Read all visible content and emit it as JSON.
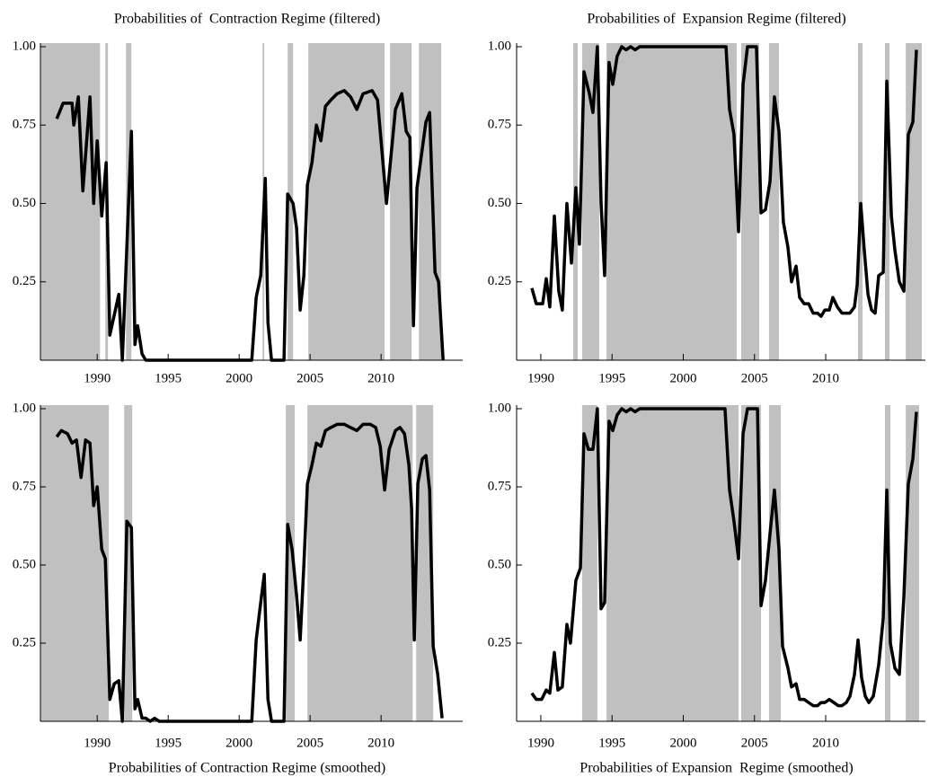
{
  "chart_data": [
    {
      "type": "line",
      "title": "Probabilities of  Contraction Regime (filtered)",
      "color": "#000000",
      "shade_color": "#c0c0c0",
      "xlim": [
        1986.0,
        2015.75
      ],
      "ylim": [
        0,
        1
      ],
      "xticks": [
        1990,
        1995,
        2000,
        2005,
        2010
      ],
      "yticks": [
        0.25,
        {
          "value": 0.5,
          "label": "0.50"
        },
        0.75,
        {
          "value": 1,
          "label": "1.00"
        }
      ],
      "shaded": [
        [
          1986.0,
          1990.2
        ],
        [
          1990.57,
          1990.76
        ],
        [
          1992.03,
          1992.41
        ],
        [
          2001.65,
          2001.77
        ],
        [
          2003.42,
          2003.8
        ],
        [
          2004.87,
          2010.25
        ],
        [
          2010.63,
          2012.15
        ],
        [
          2012.66,
          2014.24
        ]
      ],
      "x": [
        1987.15,
        1987.6,
        1988.23,
        1988.35,
        1988.67,
        1988.99,
        1989.49,
        1989.75,
        1990.0,
        1990.32,
        1990.63,
        1990.89,
        1991.52,
        1991.77,
        1992.41,
        1992.66,
        1992.85,
        1993.16,
        1993.42,
        2000.89,
        2001.2,
        2001.52,
        2001.84,
        2002.03,
        2002.28,
        2003.16,
        2003.42,
        2003.8,
        2004.05,
        2004.3,
        2004.56,
        2004.81,
        2005.13,
        2005.44,
        2005.76,
        2006.08,
        2006.46,
        2006.9,
        2007.41,
        2007.85,
        2008.29,
        2008.73,
        2009.37,
        2009.75,
        2010.38,
        2011.01,
        2011.46,
        2011.77,
        2012.03,
        2012.28,
        2012.53,
        2013.16,
        2013.42,
        2013.8,
        2014.05,
        2014.37
      ],
      "values": [
        0.77,
        0.82,
        0.82,
        0.75,
        0.84,
        0.54,
        0.84,
        0.5,
        0.7,
        0.46,
        0.63,
        0.08,
        0.21,
        0,
        0.73,
        0.05,
        0.11,
        0.02,
        0,
        0,
        0.2,
        0.27,
        0.58,
        0.12,
        0,
        0,
        0.53,
        0.5,
        0.42,
        0.16,
        0.27,
        0.56,
        0.63,
        0.75,
        0.7,
        0.81,
        0.83,
        0.85,
        0.86,
        0.84,
        0.8,
        0.85,
        0.86,
        0.83,
        0.5,
        0.8,
        0.85,
        0.73,
        0.71,
        0.11,
        0.55,
        0.76,
        0.79,
        0.28,
        0.25,
        0
      ]
    },
    {
      "type": "line",
      "title": "Probabilities of  Expansion Regime (filtered)",
      "color": "#000000",
      "shade_color": "#c0c0c0",
      "xlim": [
        1988.3,
        2017.0
      ],
      "ylim": [
        0,
        1
      ],
      "xticks": [
        1990,
        1995,
        2000,
        2005,
        2010
      ],
      "yticks": [
        0.25,
        {
          "value": 0.5,
          "label": "0.50"
        },
        0.75,
        {
          "value": 1,
          "label": "1.00"
        }
      ],
      "shaded": [
        [
          1992.27,
          1992.59
        ],
        [
          1992.9,
          1994.1
        ],
        [
          1994.61,
          2003.75
        ],
        [
          2004.07,
          2005.33
        ],
        [
          2006.02,
          2006.72
        ],
        [
          2012.27,
          2012.59
        ],
        [
          2014.16,
          2014.48
        ],
        [
          2015.62,
          2016.75
        ]
      ],
      "x": [
        1989.37,
        1989.68,
        1990.13,
        1990.38,
        1990.63,
        1990.95,
        1991.26,
        1991.51,
        1991.83,
        1992.15,
        1992.46,
        1992.71,
        1993.03,
        1993.41,
        1993.66,
        1993.97,
        1994.23,
        1994.48,
        1994.79,
        1995.05,
        1995.36,
        1995.68,
        1995.99,
        1996.31,
        1996.62,
        1996.94,
        2003.0,
        2003.25,
        2003.56,
        2003.88,
        2004.2,
        2004.51,
        2005.14,
        2005.46,
        2005.77,
        2006.09,
        2006.4,
        2006.72,
        2007.03,
        2007.35,
        2007.6,
        2007.92,
        2008.17,
        2008.49,
        2008.8,
        2009.12,
        2009.43,
        2009.68,
        2009.94,
        2010.25,
        2010.5,
        2010.82,
        2011.14,
        2011.45,
        2011.7,
        2012.02,
        2012.21,
        2012.46,
        2012.71,
        2012.97,
        2013.22,
        2013.47,
        2013.72,
        2014.04,
        2014.29,
        2014.61,
        2014.86,
        2015.17,
        2015.49,
        2015.8,
        2016.12,
        2016.37
      ],
      "values": [
        0.23,
        0.18,
        0.18,
        0.26,
        0.17,
        0.46,
        0.22,
        0.16,
        0.5,
        0.31,
        0.55,
        0.37,
        0.92,
        0.85,
        0.79,
        1,
        0.5,
        0.27,
        0.95,
        0.88,
        0.97,
        1,
        0.99,
        1,
        0.99,
        1,
        1,
        0.8,
        0.72,
        0.41,
        0.88,
        1,
        1,
        0.47,
        0.48,
        0.57,
        0.84,
        0.73,
        0.44,
        0.36,
        0.25,
        0.3,
        0.2,
        0.18,
        0.18,
        0.15,
        0.15,
        0.14,
        0.16,
        0.16,
        0.2,
        0.17,
        0.15,
        0.15,
        0.15,
        0.17,
        0.24,
        0.5,
        0.35,
        0.21,
        0.16,
        0.15,
        0.27,
        0.28,
        0.89,
        0.46,
        0.35,
        0.25,
        0.22,
        0.72,
        0.76,
        0.99
      ]
    },
    {
      "type": "line",
      "title": "Probabilities of Contraction Regime (smoothed)",
      "color": "#000000",
      "shade_color": "#c0c0c0",
      "xlim": [
        1986.0,
        2015.75
      ],
      "ylim": [
        0,
        1
      ],
      "xticks": [
        1990,
        1995,
        2000,
        2005,
        2010
      ],
      "yticks": [
        0.25,
        {
          "value": 0.5,
          "label": "0.50"
        },
        0.75,
        {
          "value": 1,
          "label": "1.00"
        }
      ],
      "shaded": [
        [
          1986.0,
          1990.82
        ],
        [
          1991.9,
          1992.47
        ],
        [
          2003.29,
          2003.92
        ],
        [
          2004.81,
          2012.22
        ],
        [
          2012.47,
          2013.67
        ]
      ],
      "x": [
        1987.15,
        1987.47,
        1987.91,
        1988.23,
        1988.54,
        1988.86,
        1989.18,
        1989.49,
        1989.75,
        1990.0,
        1990.32,
        1990.57,
        1990.89,
        1991.2,
        1991.52,
        1991.77,
        1992.09,
        1992.41,
        1992.66,
        1992.85,
        1993.16,
        1993.42,
        1993.73,
        1994.05,
        1994.37,
        2000.89,
        2001.2,
        2001.52,
        2001.77,
        2002.03,
        2002.28,
        2003.16,
        2003.42,
        2003.73,
        2004.05,
        2004.3,
        2004.56,
        2004.81,
        2005.13,
        2005.44,
        2005.76,
        2006.08,
        2006.46,
        2006.9,
        2007.41,
        2007.85,
        2008.29,
        2008.73,
        2009.24,
        2009.62,
        2009.94,
        2010.25,
        2010.57,
        2011.01,
        2011.33,
        2011.65,
        2011.96,
        2012.15,
        2012.34,
        2012.59,
        2012.91,
        2013.16,
        2013.42,
        2013.67,
        2013.99,
        2014.3
      ],
      "values": [
        0.91,
        0.93,
        0.92,
        0.89,
        0.9,
        0.78,
        0.9,
        0.89,
        0.69,
        0.75,
        0.55,
        0.52,
        0.07,
        0.12,
        0.13,
        0,
        0.64,
        0.62,
        0.04,
        0.07,
        0.01,
        0.01,
        0,
        0.01,
        0,
        0,
        0.26,
        0.38,
        0.47,
        0.07,
        0,
        0,
        0.63,
        0.55,
        0.4,
        0.26,
        0.5,
        0.76,
        0.82,
        0.89,
        0.88,
        0.93,
        0.94,
        0.95,
        0.95,
        0.94,
        0.93,
        0.95,
        0.95,
        0.94,
        0.88,
        0.74,
        0.87,
        0.93,
        0.94,
        0.92,
        0.82,
        0.68,
        0.26,
        0.76,
        0.84,
        0.85,
        0.74,
        0.24,
        0.15,
        0.01
      ]
    },
    {
      "type": "line",
      "title": "Probabilities of Expansion  Regime (smoothed)",
      "color": "#000000",
      "shade_color": "#c0c0c0",
      "xlim": [
        1988.3,
        2017.0
      ],
      "ylim": [
        0,
        1
      ],
      "xticks": [
        1990,
        1995,
        2000,
        2005,
        2010
      ],
      "yticks": [
        0.25,
        {
          "value": 0.5,
          "label": "0.50"
        },
        0.75,
        {
          "value": 1,
          "label": "1.00"
        }
      ],
      "shaded": [
        [
          1992.9,
          1993.97
        ],
        [
          1994.61,
          2003.88
        ],
        [
          2004.07,
          2005.46
        ],
        [
          2006.02,
          2006.85
        ],
        [
          2014.16,
          2014.54
        ],
        [
          2015.62,
          2016.56
        ]
      ],
      "x": [
        1989.37,
        1989.68,
        1990.06,
        1990.38,
        1990.63,
        1990.95,
        1991.2,
        1991.51,
        1991.83,
        1992.08,
        1992.46,
        1992.78,
        1993.03,
        1993.34,
        1993.66,
        1993.97,
        1994.23,
        1994.48,
        1994.79,
        1995.05,
        1995.36,
        1995.68,
        1995.99,
        1996.31,
        1996.62,
        1996.94,
        2002.93,
        2003.25,
        2003.56,
        2003.88,
        2004.2,
        2004.51,
        2005.21,
        2005.46,
        2005.77,
        2006.09,
        2006.4,
        2006.72,
        2006.97,
        2007.35,
        2007.6,
        2007.92,
        2008.17,
        2008.49,
        2008.8,
        2009.12,
        2009.43,
        2009.68,
        2009.94,
        2010.25,
        2010.57,
        2010.88,
        2011.14,
        2011.45,
        2011.7,
        2012.02,
        2012.27,
        2012.52,
        2012.78,
        2013.03,
        2013.34,
        2013.72,
        2014.04,
        2014.29,
        2014.54,
        2014.86,
        2015.17,
        2015.49,
        2015.8,
        2016.12,
        2016.37
      ],
      "values": [
        0.09,
        0.07,
        0.07,
        0.1,
        0.09,
        0.22,
        0.1,
        0.11,
        0.31,
        0.25,
        0.45,
        0.49,
        0.92,
        0.87,
        0.87,
        1,
        0.36,
        0.38,
        0.96,
        0.93,
        0.98,
        1,
        0.99,
        1,
        0.99,
        1,
        1,
        0.74,
        0.64,
        0.52,
        0.92,
        1,
        1,
        0.37,
        0.45,
        0.6,
        0.74,
        0.55,
        0.24,
        0.17,
        0.11,
        0.12,
        0.07,
        0.07,
        0.06,
        0.05,
        0.05,
        0.06,
        0.06,
        0.07,
        0.06,
        0.05,
        0.05,
        0.06,
        0.08,
        0.15,
        0.26,
        0.14,
        0.08,
        0.06,
        0.08,
        0.18,
        0.33,
        0.74,
        0.25,
        0.17,
        0.15,
        0.4,
        0.76,
        0.84,
        0.99
      ]
    }
  ]
}
